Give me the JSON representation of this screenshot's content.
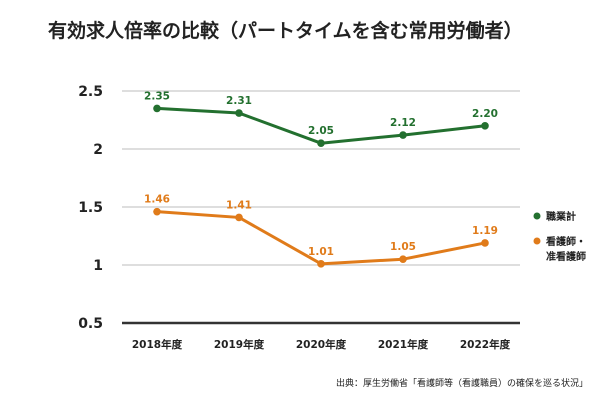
{
  "chart_data": {
    "type": "line",
    "title": "有効求人倍率の比較（パートタイムを含む常用労働者）",
    "categories": [
      "2018年度",
      "2019年度",
      "2020年度",
      "2021年度",
      "2022年度"
    ],
    "ylim": [
      0.5,
      2.5
    ],
    "yticks": [
      "0.5",
      "1",
      "1.5",
      "2",
      "2.5"
    ],
    "yticks_values": [
      0.5,
      1,
      1.5,
      2,
      2.5
    ],
    "grid": true,
    "legend_position": "right",
    "series": [
      {
        "name": "職業計",
        "color": "#23702f",
        "values": [
          2.35,
          2.31,
          2.05,
          2.12,
          2.2
        ],
        "labels": [
          "2.35",
          "2.31",
          "2.05",
          "2.12",
          "2.20"
        ]
      },
      {
        "name_lines": [
          "看護師・",
          "准看護師"
        ],
        "color": "#e07b1a",
        "values": [
          1.46,
          1.41,
          1.01,
          1.05,
          1.19
        ],
        "labels": [
          "1.46",
          "1.41",
          "1.01",
          "1.05",
          "1.19"
        ]
      }
    ],
    "source": "出典：厚生労働省「看護師等（看護職員）の確保を巡る状況」"
  }
}
